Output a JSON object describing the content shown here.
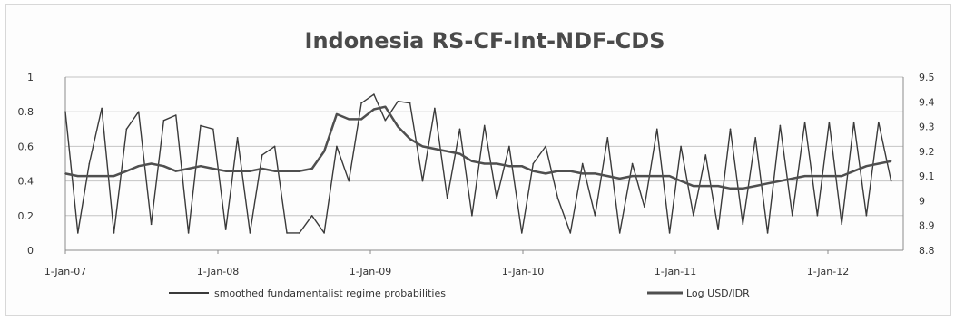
{
  "chart_data": {
    "type": "line",
    "title": "Indonesia RS-CF-Int-NDF-CDS",
    "xlabel": "",
    "ylabel": "",
    "y2label": "",
    "grid": true,
    "legend_position": "bottom",
    "x_ticks": [
      "1-Jan-07",
      "1-Jan-08",
      "1-Jan-09",
      "1-Jan-10",
      "1-Jan-11",
      "1-Jan-12"
    ],
    "y_ticks": [
      "0",
      "0.2",
      "0.4",
      "0.6",
      "0.8",
      "1"
    ],
    "y2_ticks": [
      "8.8",
      "8.9",
      "9",
      "9.1",
      "9.2",
      "9.3",
      "9.4",
      "9.5"
    ],
    "ylim": [
      0,
      1
    ],
    "y2lim": [
      8.8,
      9.5
    ],
    "xlim": [
      "2007-01-01",
      "2012-08-31"
    ],
    "series": [
      {
        "name": "smoothed fundamentalist regime probabilities",
        "axis": "left",
        "color": "#3a3a3a",
        "x": [
          "2007-01-01",
          "2007-02-01",
          "2007-03-01",
          "2007-04-01",
          "2007-05-01",
          "2007-06-01",
          "2007-07-01",
          "2007-08-01",
          "2007-09-01",
          "2007-10-01",
          "2007-11-01",
          "2007-12-01",
          "2008-01-01",
          "2008-02-01",
          "2008-03-01",
          "2008-04-01",
          "2008-05-01",
          "2008-06-01",
          "2008-07-01",
          "2008-08-01",
          "2008-09-01",
          "2008-10-01",
          "2008-11-01",
          "2008-12-01",
          "2009-01-01",
          "2009-02-01",
          "2009-03-01",
          "2009-04-01",
          "2009-05-01",
          "2009-06-01",
          "2009-07-01",
          "2009-08-01",
          "2009-09-01",
          "2009-10-01",
          "2009-11-01",
          "2009-12-01",
          "2010-01-01",
          "2010-02-01",
          "2010-03-01",
          "2010-04-01",
          "2010-05-01",
          "2010-06-01",
          "2010-07-01",
          "2010-08-01",
          "2010-09-01",
          "2010-10-01",
          "2010-11-01",
          "2010-12-01",
          "2011-01-01",
          "2011-02-01",
          "2011-03-01",
          "2011-04-01",
          "2011-05-01",
          "2011-06-01",
          "2011-07-01",
          "2011-08-01",
          "2011-09-01",
          "2011-10-01",
          "2011-11-01",
          "2011-12-01",
          "2012-01-01",
          "2012-02-01",
          "2012-03-01",
          "2012-04-01",
          "2012-05-01",
          "2012-06-01",
          "2012-07-01",
          "2012-08-01"
        ],
        "values": [
          0.8,
          0.1,
          0.5,
          0.82,
          0.1,
          0.7,
          0.8,
          0.15,
          0.75,
          0.78,
          0.1,
          0.72,
          0.7,
          0.12,
          0.65,
          0.1,
          0.55,
          0.6,
          0.1,
          0.1,
          0.2,
          0.1,
          0.6,
          0.4,
          0.85,
          0.9,
          0.75,
          0.86,
          0.85,
          0.4,
          0.82,
          0.3,
          0.7,
          0.2,
          0.72,
          0.3,
          0.6,
          0.1,
          0.5,
          0.6,
          0.3,
          0.1,
          0.5,
          0.2,
          0.65,
          0.1,
          0.5,
          0.25,
          0.7,
          0.1,
          0.6,
          0.2,
          0.55,
          0.12,
          0.7,
          0.15,
          0.65,
          0.1,
          0.72,
          0.2,
          0.74,
          0.2,
          0.74,
          0.15,
          0.74,
          0.2,
          0.74,
          0.4
        ]
      },
      {
        "name": "Log USD/IDR",
        "axis": "right",
        "color": "#4f4f4f",
        "x": [
          "2007-01-01",
          "2007-02-01",
          "2007-03-01",
          "2007-04-01",
          "2007-05-01",
          "2007-06-01",
          "2007-07-01",
          "2007-08-01",
          "2007-09-01",
          "2007-10-01",
          "2007-11-01",
          "2007-12-01",
          "2008-01-01",
          "2008-02-01",
          "2008-03-01",
          "2008-04-01",
          "2008-05-01",
          "2008-06-01",
          "2008-07-01",
          "2008-08-01",
          "2008-09-01",
          "2008-10-01",
          "2008-11-01",
          "2008-12-01",
          "2009-01-01",
          "2009-02-01",
          "2009-03-01",
          "2009-04-01",
          "2009-05-01",
          "2009-06-01",
          "2009-07-01",
          "2009-08-01",
          "2009-09-01",
          "2009-10-01",
          "2009-11-01",
          "2009-12-01",
          "2010-01-01",
          "2010-02-01",
          "2010-03-01",
          "2010-04-01",
          "2010-05-01",
          "2010-06-01",
          "2010-07-01",
          "2010-08-01",
          "2010-09-01",
          "2010-10-01",
          "2010-11-01",
          "2010-12-01",
          "2011-01-01",
          "2011-02-01",
          "2011-03-01",
          "2011-04-01",
          "2011-05-01",
          "2011-06-01",
          "2011-07-01",
          "2011-08-01",
          "2011-09-01",
          "2011-10-01",
          "2011-11-01",
          "2011-12-01",
          "2012-01-01",
          "2012-02-01",
          "2012-03-01",
          "2012-04-01",
          "2012-05-01",
          "2012-06-01",
          "2012-07-01",
          "2012-08-01"
        ],
        "values": [
          9.11,
          9.1,
          9.1,
          9.1,
          9.1,
          9.12,
          9.14,
          9.15,
          9.14,
          9.12,
          9.13,
          9.14,
          9.13,
          9.12,
          9.12,
          9.12,
          9.13,
          9.12,
          9.12,
          9.12,
          9.13,
          9.2,
          9.35,
          9.33,
          9.33,
          9.37,
          9.38,
          9.3,
          9.25,
          9.22,
          9.21,
          9.2,
          9.19,
          9.16,
          9.15,
          9.15,
          9.14,
          9.14,
          9.12,
          9.11,
          9.12,
          9.12,
          9.11,
          9.11,
          9.1,
          9.09,
          9.1,
          9.1,
          9.1,
          9.1,
          9.08,
          9.06,
          9.06,
          9.06,
          9.05,
          9.05,
          9.06,
          9.07,
          9.08,
          9.09,
          9.1,
          9.1,
          9.1,
          9.1,
          9.12,
          9.14,
          9.15,
          9.16
        ]
      }
    ]
  }
}
